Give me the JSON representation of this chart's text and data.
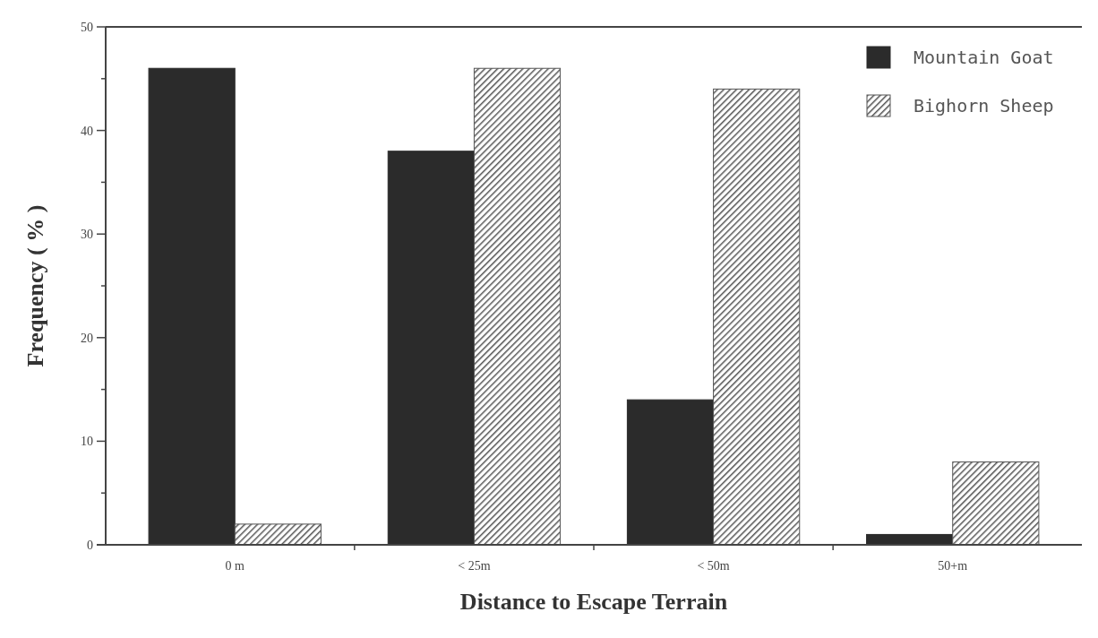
{
  "chart_data": {
    "type": "bar",
    "xlabel": "Distance to Escape Terrain",
    "ylabel": "Frequency ( % )",
    "categories": [
      "0 m",
      "< 25m",
      "< 50m",
      "50+m"
    ],
    "series": [
      {
        "name": "Mountain Goat",
        "color": "#2b2b2b",
        "values": [
          46,
          38,
          14,
          1
        ]
      },
      {
        "name": "Bighorn Sheep",
        "color": "#555555",
        "values": [
          2,
          46,
          44,
          8
        ]
      }
    ],
    "ylim": [
      0,
      50
    ],
    "yticks": [
      0,
      {
        "value": 5,
        "label": null
      },
      10,
      {
        "value": 15,
        "label": null
      },
      20,
      {
        "value": 25,
        "label": null
      },
      30,
      {
        "value": 35,
        "label": null
      },
      40,
      {
        "value": 45,
        "label": null
      },
      50
    ],
    "grid": false,
    "legend": "top right"
  }
}
